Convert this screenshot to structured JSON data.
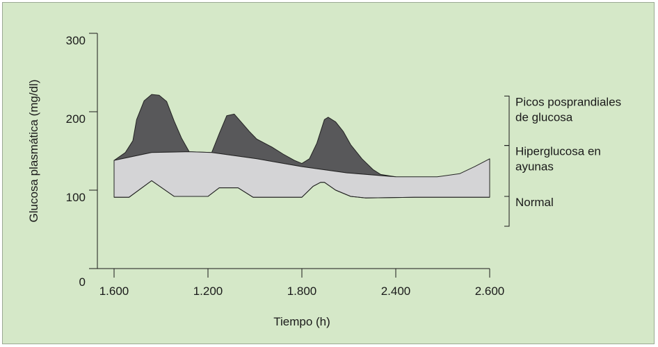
{
  "chart_data": {
    "type": "area",
    "title": "",
    "xlabel": "Tiempo (h)",
    "ylabel": "Glucosa plasmática (mg/dl)",
    "x_tick_labels": [
      "1.600",
      "1.200",
      "1.800",
      "2.400",
      "2.600"
    ],
    "y_ticks": [
      0,
      100,
      200,
      300
    ],
    "ylim": [
      0,
      300
    ],
    "grid": false,
    "series": [
      {
        "name": "Normal",
        "fill": "#d5e8c8",
        "points": [
          [
            0.0,
            91
          ],
          [
            0.04,
            91
          ],
          [
            0.1,
            112
          ],
          [
            0.16,
            92
          ],
          [
            0.25,
            92
          ],
          [
            0.28,
            103
          ],
          [
            0.33,
            103
          ],
          [
            0.37,
            91
          ],
          [
            0.5,
            91
          ],
          [
            0.53,
            105
          ],
          [
            0.55,
            110
          ],
          [
            0.56,
            110
          ],
          [
            0.59,
            100
          ],
          [
            0.63,
            92
          ],
          [
            0.67,
            90
          ],
          [
            0.8,
            91
          ],
          [
            0.9,
            91
          ],
          [
            1.0,
            91
          ]
        ]
      },
      {
        "name": "Hiperglucosa en ayunas",
        "fill": "#d4d4d6",
        "points": [
          [
            0.0,
            138
          ],
          [
            0.1,
            148
          ],
          [
            0.2,
            149
          ],
          [
            0.26,
            148
          ],
          [
            0.38,
            140
          ],
          [
            0.5,
            130
          ],
          [
            0.62,
            122
          ],
          [
            0.75,
            117
          ],
          [
            0.86,
            117
          ],
          [
            0.92,
            121
          ],
          [
            0.96,
            130
          ],
          [
            1.0,
            140
          ]
        ]
      },
      {
        "name": "Picos posprandiales de glucosa",
        "fill": "#58585a",
        "points": [
          [
            0.0,
            138
          ],
          [
            0.03,
            148
          ],
          [
            0.05,
            163
          ],
          [
            0.06,
            190
          ],
          [
            0.08,
            214
          ],
          [
            0.1,
            222
          ],
          [
            0.12,
            221
          ],
          [
            0.14,
            213
          ],
          [
            0.16,
            188
          ],
          [
            0.18,
            166
          ],
          [
            0.2,
            149
          ],
          [
            0.26,
            148
          ],
          [
            0.28,
            172
          ],
          [
            0.3,
            195
          ],
          [
            0.32,
            197
          ],
          [
            0.34,
            186
          ],
          [
            0.36,
            175
          ],
          [
            0.38,
            165
          ],
          [
            0.42,
            155
          ],
          [
            0.45,
            146
          ],
          [
            0.48,
            138
          ],
          [
            0.5,
            134
          ],
          [
            0.52,
            140
          ],
          [
            0.54,
            160
          ],
          [
            0.56,
            190
          ],
          [
            0.57,
            193
          ],
          [
            0.59,
            187
          ],
          [
            0.61,
            175
          ],
          [
            0.63,
            158
          ],
          [
            0.66,
            140
          ],
          [
            0.69,
            126
          ],
          [
            0.71,
            120
          ],
          [
            0.75,
            117
          ]
        ]
      }
    ],
    "annotations": [
      {
        "lines": [
          "Picos posprandiales",
          "de glucosa"
        ],
        "range": [
          157,
          220
        ]
      },
      {
        "lines": [
          "Hiperglucosa en",
          "ayunas"
        ],
        "range": [
          92,
          157
        ]
      },
      {
        "lines": [
          "Normal"
        ],
        "range": [
          54,
          92
        ]
      }
    ]
  }
}
